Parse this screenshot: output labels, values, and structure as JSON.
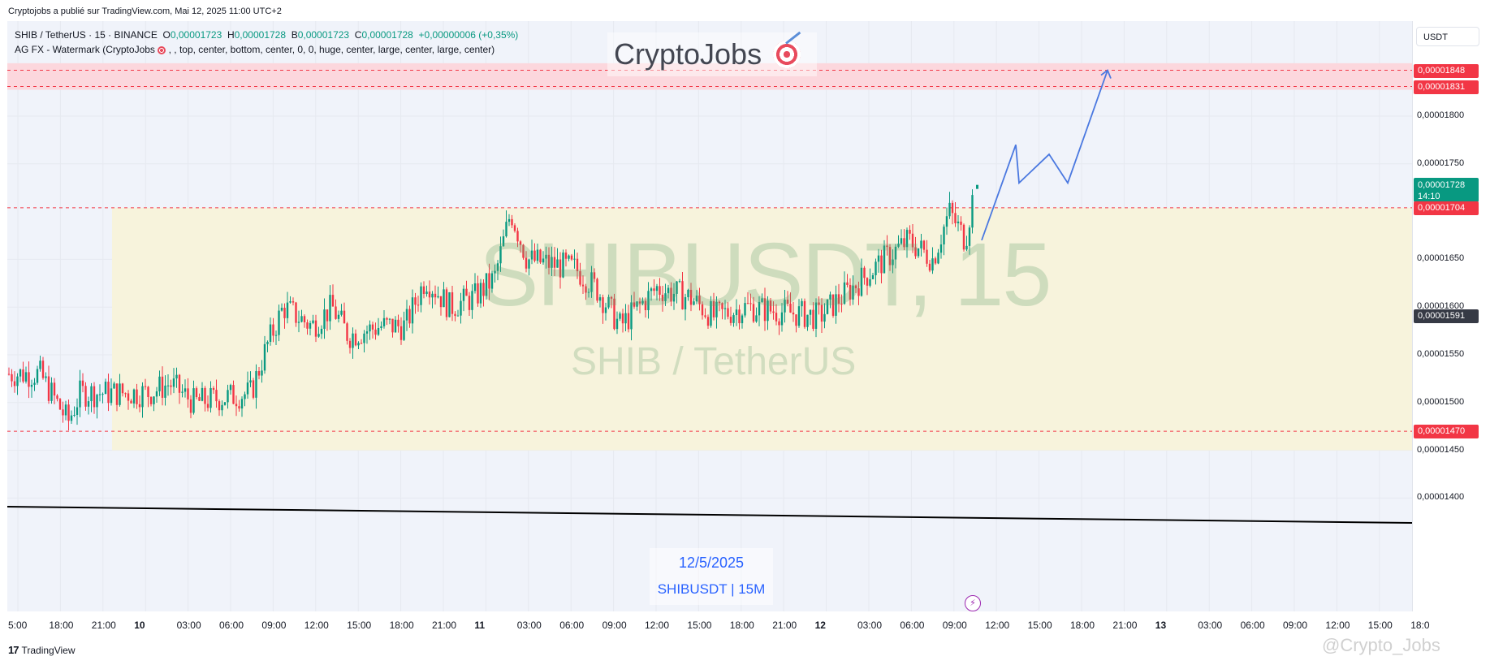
{
  "header": {
    "publisher": "Cryptojobs a publié sur TradingView.com, Mai 12, 2025 11:00 UTC+2"
  },
  "legend": {
    "line1_symbol": "SHIB / TetherUS · 15 · BINANCE",
    "o_label": "O",
    "o_val": "0,00001723",
    "h_label": "H",
    "h_val": "0,00001728",
    "b_label": "B",
    "b_val": "0,00001723",
    "c_label": "C",
    "c_val": "0,00001728",
    "change": "+0,00000006 (+0,35%)",
    "line2_prefix": "AG FX - Watermark (CryptoJobs",
    "line2_suffix": ", , top, center, bottom, center, 0, 0, huge, center, large, center, large, center)"
  },
  "watermark": {
    "brand": "CryptoJobs",
    "big": "SHIBUSDT, 15",
    "sub": "SHIB / TetherUS"
  },
  "date_box": {
    "date": "12/5/2025",
    "pair": "SHIBUSDT | 15M"
  },
  "price_axis": {
    "currency": "USDT",
    "ticks": [
      "0,00001800",
      "0,00001750",
      "0,00001650",
      "0,00001600",
      "0,00001550",
      "0,00001500",
      "0,00001450",
      "0,00001400"
    ],
    "labels": [
      {
        "text": "0,00001848",
        "style": "red"
      },
      {
        "text": "0,00001831",
        "style": "red"
      },
      {
        "text": "0,00001728",
        "sub": "14:10",
        "style": "green"
      },
      {
        "text": "0,00001704",
        "style": "red"
      },
      {
        "text": "0,00001591",
        "style": "dark"
      },
      {
        "text": "0,00001470",
        "style": "red"
      }
    ]
  },
  "time_axis": {
    "ticks": [
      "5:00",
      "18:00",
      "21:00",
      "10",
      "03:00",
      "06:00",
      "09:00",
      "12:00",
      "15:00",
      "18:00",
      "21:00",
      "11",
      "03:00",
      "06:00",
      "09:00",
      "12:00",
      "15:00",
      "18:00",
      "21:00",
      "12",
      "03:00",
      "06:00",
      "09:00",
      "12:00",
      "15:00",
      "18:00",
      "21:00",
      "13",
      "03:00",
      "06:00",
      "09:00",
      "12:00",
      "15:00",
      "18:0"
    ]
  },
  "footer": {
    "logo": "TradingView",
    "watermark": "@Crypto_Jobs"
  },
  "colors": {
    "up": "#089981",
    "down": "#f23645",
    "zone": "#f7f3dc",
    "resistance": "#fcd7dd",
    "projection": "#4a78e0"
  },
  "chart_data": {
    "type": "candlestick",
    "symbol": "SHIBUSDT",
    "timeframe": "15",
    "y_range": [
      1.38e-05,
      1.86e-05
    ],
    "levels": [
      1.848e-05,
      1.831e-05,
      1.704e-05,
      1.47e-05
    ],
    "last_price": 1.728e-05,
    "last_close_marker": 1.591e-05,
    "zone_range": [
      1.45e-05,
      1.704e-05
    ],
    "resistance_zone": [
      1.831e-05,
      1.852e-05
    ],
    "ohlc_last": {
      "o": 1.723e-05,
      "h": 1.728e-05,
      "l": 1.723e-05,
      "c": 1.728e-05
    },
    "projection_path": [
      1.67e-05,
      1.77e-05,
      1.73e-05,
      1.76e-05,
      1.73e-05,
      1.848e-05
    ]
  }
}
